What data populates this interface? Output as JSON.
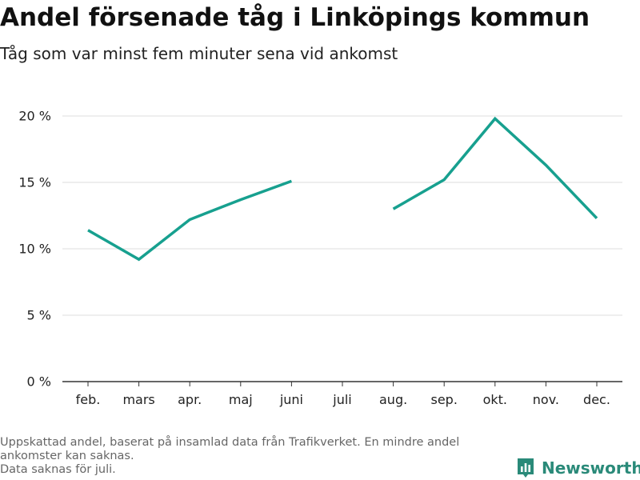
{
  "title": "Andel försenade tåg i Linköpings kommun",
  "subtitle": "Tåg som var minst fem minuter sena vid ankomst",
  "footnote": {
    "line1": "Uppskattad andel, baserat på insamlad data från Trafikverket. En mindre andel",
    "line2": "ankomster kan saknas.",
    "line3": "Data saknas för juli."
  },
  "brand": {
    "name": "Newsworthy",
    "icon": "newsworthy-logo-icon",
    "color": "#2a8a79"
  },
  "colors": {
    "line": "#17a08f",
    "grid": "#dddddd",
    "axis": "#333333"
  },
  "chart_data": {
    "type": "line",
    "categories": [
      "feb.",
      "mars",
      "apr.",
      "maj",
      "juni",
      "juli",
      "aug.",
      "sep.",
      "okt.",
      "nov.",
      "dec."
    ],
    "series": [
      {
        "values": [
          11.4,
          9.2,
          12.2,
          13.7,
          15.1,
          null,
          13.0,
          15.2,
          19.8,
          16.3,
          12.3
        ]
      }
    ],
    "ylim": [
      0,
      20
    ],
    "yticks": [
      0,
      5,
      10,
      15,
      20
    ],
    "ytick_labels": [
      "0 %",
      "5 %",
      "10 %",
      "15 %",
      "20 %"
    ],
    "xlabel": "",
    "ylabel": "",
    "grid": true
  }
}
